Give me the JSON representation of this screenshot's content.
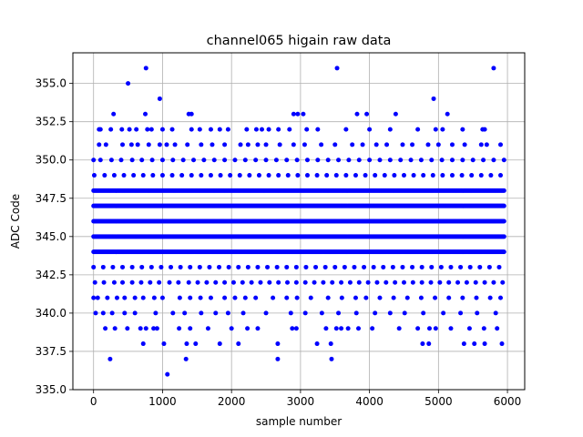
{
  "chart_data": {
    "type": "scatter",
    "title": "channel065 higain raw data",
    "xlabel": "sample number",
    "ylabel": "ADC Code",
    "xlim": [
      -300,
      6250
    ],
    "ylim": [
      335.0,
      357.0
    ],
    "x_ticks": [
      0,
      1000,
      2000,
      3000,
      4000,
      5000,
      6000
    ],
    "x_tick_labels": [
      "0",
      "1000",
      "2000",
      "3000",
      "4000",
      "5000",
      "6000"
    ],
    "y_ticks": [
      335.0,
      337.5,
      340.0,
      342.5,
      345.0,
      347.5,
      350.0,
      352.5,
      355.0
    ],
    "y_tick_labels": [
      "335.0",
      "337.5",
      "340.0",
      "342.5",
      "345.0",
      "347.5",
      "350.0",
      "352.5",
      "355.0"
    ],
    "grid": true,
    "marker_color": "#0000ff",
    "series": [
      {
        "levels": [
          {
            "y": 341,
            "x": [
              0,
              60,
              200,
              340,
              450,
              600,
              720,
              880,
              1000,
              1250,
              1400,
              1550,
              1700,
              1900,
              2050,
              2200,
              2350,
              2600,
              2800,
              2950,
              3150,
              3400,
              3600,
              3800,
              3950,
              4150,
              4350,
              4550,
              4750,
              4950,
              5150,
              5350,
              5550,
              5750,
              5900
            ]
          },
          {
            "y": 342,
            "x": [
              20,
              150,
              300,
              420,
              560,
              690,
              820,
              950,
              1100,
              1230,
              1380,
              1510,
              1640,
              1770,
              1900,
              2030,
              2160,
              2290,
              2420,
              2550,
              2680,
              2810,
              2940,
              3070,
              3200,
              3330,
              3460,
              3590,
              3720,
              3850,
              3980,
              4110,
              4240,
              4370,
              4500,
              4630,
              4760,
              4890,
              5020,
              5150,
              5280,
              5410,
              5540,
              5670,
              5800,
              5930
            ]
          },
          {
            "y": 343,
            "x": [
              0,
              140,
              280,
              420,
              560,
              700,
              840,
              980,
              1120,
              1260,
              1400,
              1540,
              1680,
              1820,
              1960,
              2100,
              2240,
              2380,
              2520,
              2660,
              2800,
              2940,
              3080,
              3220,
              3360,
              3500,
              3640,
              3780,
              3920,
              4060,
              4200,
              4340,
              4480,
              4620,
              4760,
              4900,
              5040,
              5180,
              5320,
              5460,
              5600,
              5740,
              5880
            ]
          },
          {
            "y": 349,
            "x": [
              10,
              160,
              300,
              440,
              580,
              720,
              860,
              1000,
              1140,
              1280,
              1420,
              1560,
              1700,
              1840,
              1980,
              2120,
              2260,
              2400,
              2540,
              2680,
              2820,
              2960,
              3100,
              3240,
              3380,
              3520,
              3660,
              3800,
              3940,
              4080,
              4220,
              4360,
              4500,
              4640,
              4780,
              4920,
              5060,
              5200,
              5340,
              5480,
              5620,
              5760,
              5900
            ]
          },
          {
            "y": 350,
            "x": [
              0,
              100,
              260,
              400,
              560,
              700,
              850,
              1000,
              1150,
              1300,
              1450,
              1600,
              1750,
              1900,
              2050,
              2200,
              2350,
              2500,
              2650,
              2800,
              2950,
              3100,
              3250,
              3400,
              3550,
              3700,
              3850,
              4000,
              4150,
              4300,
              4450,
              4600,
              4750,
              4900,
              5050,
              5200,
              5350,
              5500,
              5650,
              5800,
              5950
            ]
          },
          {
            "y": 351,
            "x": [
              80,
              180,
              420,
              550,
              640,
              800,
              960,
              1060,
              1180,
              1360,
              1560,
              1720,
              1900,
              2130,
              2240,
              2380,
              2500,
              2700,
              2900,
              3060,
              3300,
              3500,
              3750,
              3900,
              4100,
              4250,
              4480,
              4620,
              4850,
              5000,
              5200,
              5380,
              5620,
              5700,
              5900
            ]
          },
          {
            "y": 352,
            "x": [
              80,
              100,
              250,
              410,
              520,
              620,
              780,
              840,
              1000,
              1140,
              1420,
              1540,
              1700,
              1830,
              1950,
              2220,
              2360,
              2440,
              2540,
              2680,
              2840,
              3090,
              3250,
              3660,
              4000,
              4300,
              4700,
              4960,
              5060,
              5350,
              5640,
              5670
            ]
          },
          {
            "y": 353,
            "x": [
              290,
              750,
              1380,
              1420,
              2900,
              2960,
              3040,
              3820,
              3960,
              4380,
              5130
            ]
          },
          {
            "y": 354,
            "x": [
              960,
              4930
            ]
          },
          {
            "y": 355,
            "x": [
              500
            ]
          },
          {
            "y": 356,
            "x": [
              760,
              3530,
              5800
            ]
          },
          {
            "y": 340,
            "x": [
              30,
              140,
              270,
              450,
              600,
              900,
              1150,
              1320,
              1560,
              1770,
              1950,
              2170,
              2500,
              2860,
              3070,
              3310,
              3550,
              3810,
              4080,
              4300,
              4510,
              4780,
              5070,
              5320,
              5560,
              5830
            ]
          },
          {
            "y": 339,
            "x": [
              170,
              310,
              490,
              680,
              760,
              870,
              920,
              1240,
              1400,
              1660,
              2000,
              2230,
              2380,
              2880,
              2940,
              3370,
              3520,
              3590,
              3690,
              3840,
              4040,
              4430,
              4700,
              4870,
              4960,
              5180,
              5450,
              5660,
              5850
            ]
          },
          {
            "y": 338,
            "x": [
              720,
              1020,
              1350,
              1480,
              1830,
              2100,
              2670,
              3240,
              3440,
              4770,
              4860,
              5370,
              5520,
              5670,
              5920
            ]
          },
          {
            "y": 337,
            "x": [
              240,
              1340,
              2670,
              3450
            ]
          },
          {
            "y": 336,
            "x": [
              1070
            ]
          }
        ],
        "dense_levels": [
          344,
          345,
          346,
          347,
          348
        ],
        "x_range": [
          0,
          5950
        ]
      }
    ]
  }
}
